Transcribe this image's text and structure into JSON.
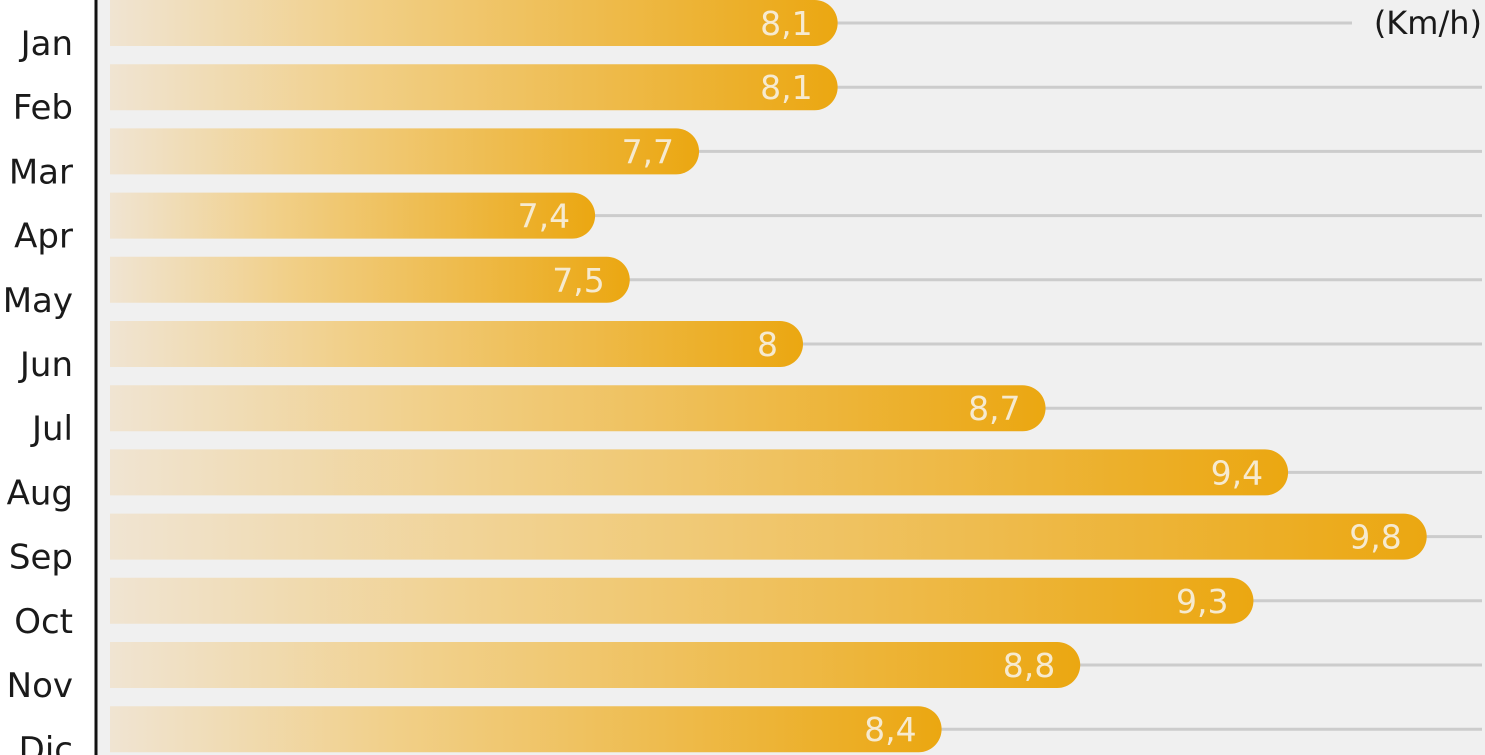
{
  "chart_data": {
    "type": "bar",
    "orientation": "horizontal",
    "unit": "(Km/h)",
    "categories": [
      "Jan",
      "Feb",
      "Mar",
      "Apr",
      "May",
      "Jun",
      "Jul",
      "Aug",
      "Sep",
      "Oct",
      "Nov",
      "Dic"
    ],
    "values": [
      8.1,
      8.1,
      7.7,
      7.4,
      7.5,
      8,
      8.7,
      9.4,
      9.8,
      9.3,
      8.8,
      8.4
    ],
    "value_labels": [
      "8,1",
      "8,1",
      "7,7",
      "7,4",
      "7,5",
      "8",
      "8,7",
      "9,4",
      "9,8",
      "9,3",
      "8,8",
      "8,4"
    ],
    "xlim": [
      6.0,
      10.0
    ],
    "grid": true,
    "colors": {
      "bar_start": "#f0e4d2",
      "bar_end": "#eba711",
      "background": "#f0f0f0",
      "gridline": "#cccccc",
      "axis": "#111111",
      "value_text": "#f6ead0"
    }
  }
}
